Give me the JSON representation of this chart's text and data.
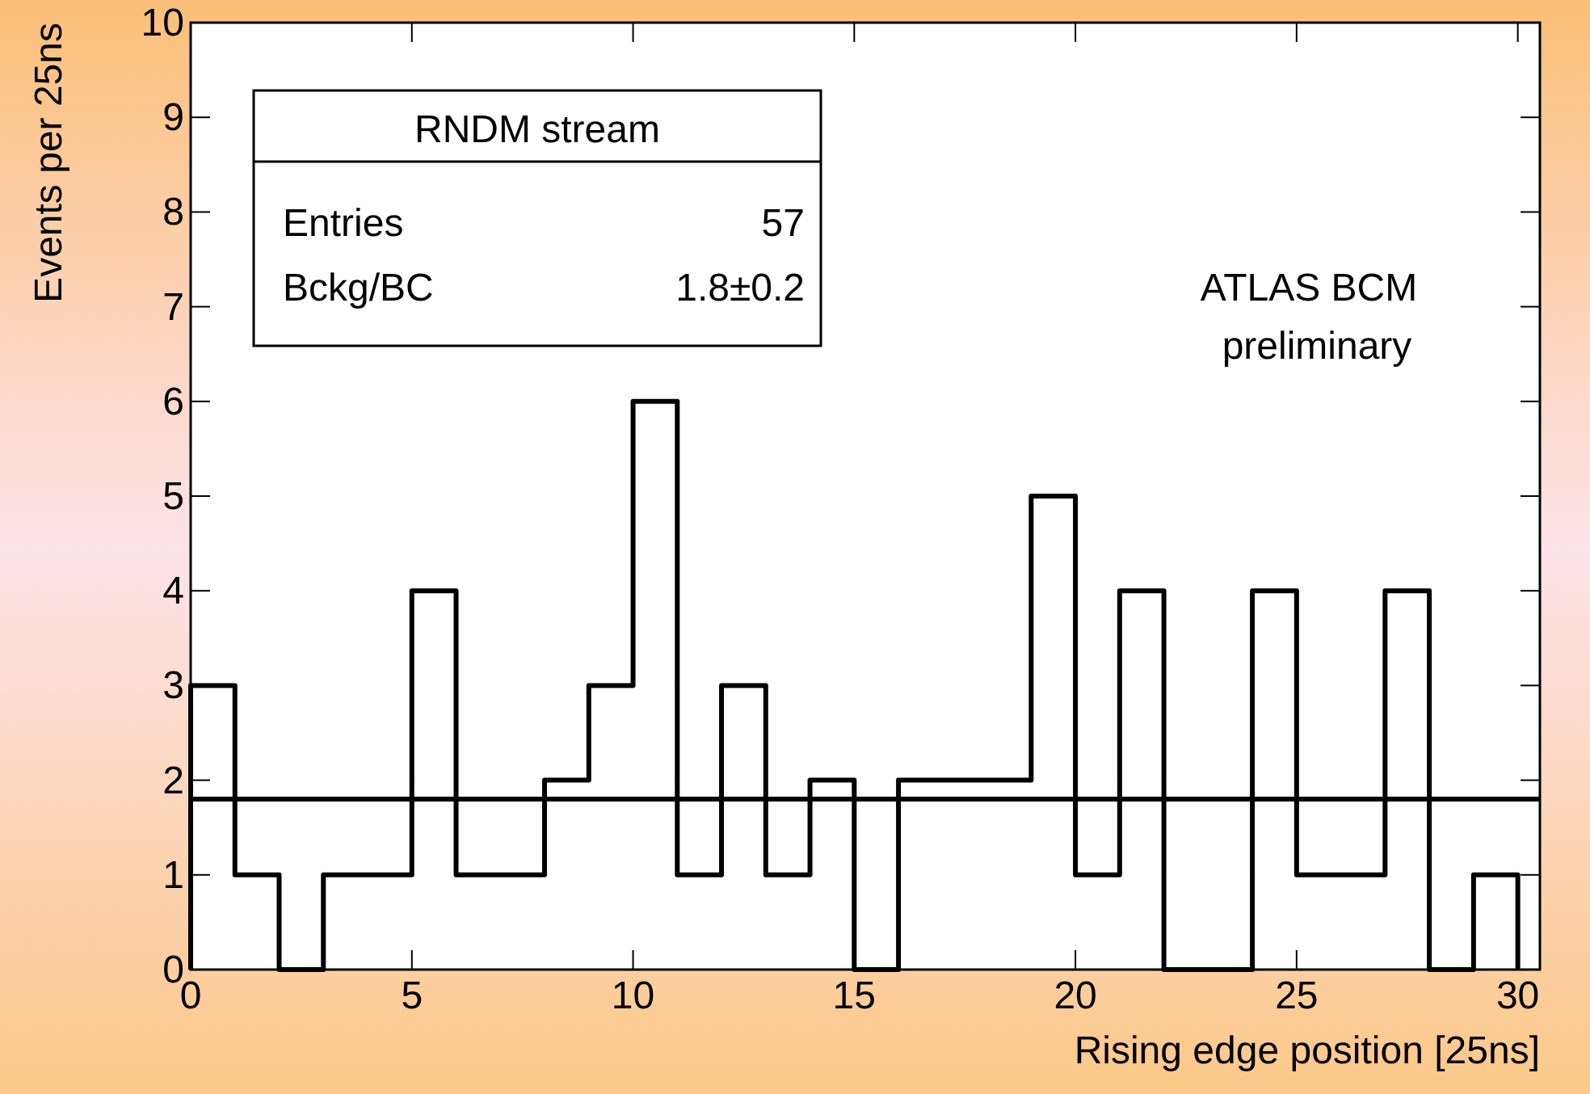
{
  "chart_data": {
    "type": "histogram",
    "xlabel": "Rising edge position [25ns]",
    "ylabel": "Events per 25ns",
    "bins": [
      0,
      1,
      2,
      3,
      4,
      5,
      6,
      7,
      8,
      9,
      10,
      11,
      12,
      13,
      14,
      15,
      16,
      17,
      18,
      19,
      20,
      21,
      22,
      23,
      24,
      25,
      26,
      27,
      28,
      29,
      30
    ],
    "values": [
      3,
      1,
      0,
      1,
      1,
      4,
      1,
      1,
      2,
      3,
      6,
      1,
      3,
      1,
      2,
      0,
      2,
      2,
      2,
      5,
      1,
      4,
      0,
      0,
      4,
      1,
      1,
      4,
      0,
      1
    ],
    "color": "#000000",
    "xlim": [
      0,
      30.5
    ],
    "ylim": [
      0,
      10
    ],
    "xticks": [
      0,
      5,
      10,
      15,
      20,
      25,
      30
    ],
    "yticks": [
      0,
      1,
      2,
      3,
      4,
      5,
      6,
      7,
      8,
      9,
      10
    ],
    "ref_lines": [
      {
        "axis": "y",
        "value": 1.8,
        "color": "#000000"
      }
    ],
    "annotations": [
      "RNDM stream",
      "Entries",
      "57",
      "Bckg/BC",
      "1.8±0.2",
      "ATLAS BCM",
      "preliminary"
    ],
    "grid": false
  }
}
